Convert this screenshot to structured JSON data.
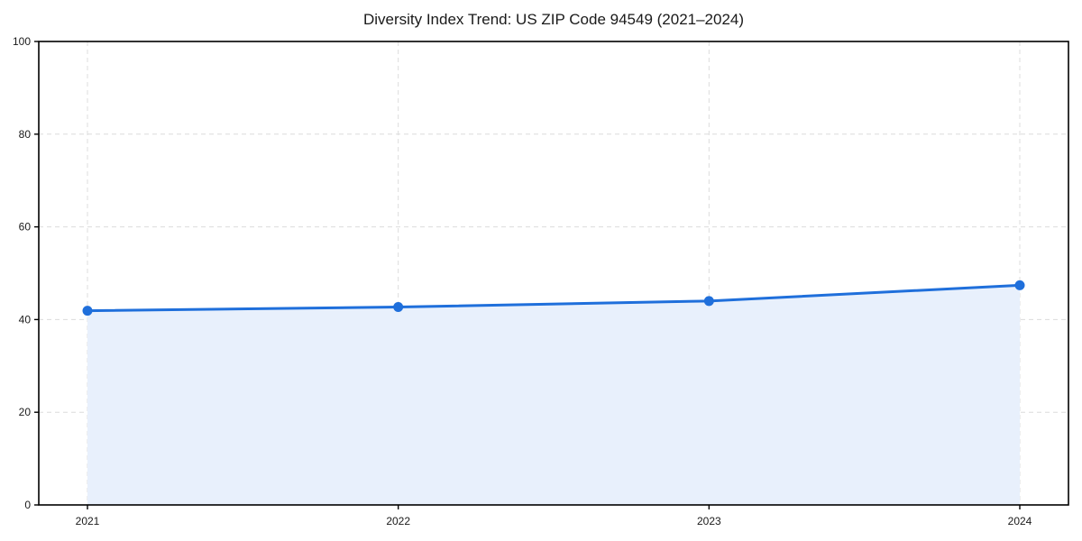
{
  "chart": {
    "title": "Diversity Index Trend: US ZIP Code 94549 (2021–2024)"
  },
  "chart_data": {
    "type": "line",
    "title": "Diversity Index Trend: US ZIP Code 94549 (2021–2024)",
    "x": [
      "2021",
      "2022",
      "2023",
      "2024"
    ],
    "series": [
      {
        "name": "Diversity Index",
        "values": [
          41.9,
          42.7,
          44.0,
          47.4
        ]
      }
    ],
    "xlabel": "",
    "ylabel": "",
    "ylim": [
      0,
      100
    ],
    "yticks": [
      0,
      20,
      40,
      60,
      80,
      100
    ],
    "grid": "dashed, both axes",
    "legend": "none",
    "area_fill": true,
    "marker": "circle",
    "colors": {
      "line": "#1f6fdb",
      "marker": "#1f6fdb",
      "fill": "#e8f0fc",
      "grid": "#dcdcdc",
      "axis": "#000000",
      "text": "#1a1a1a",
      "background": "#ffffff"
    }
  }
}
